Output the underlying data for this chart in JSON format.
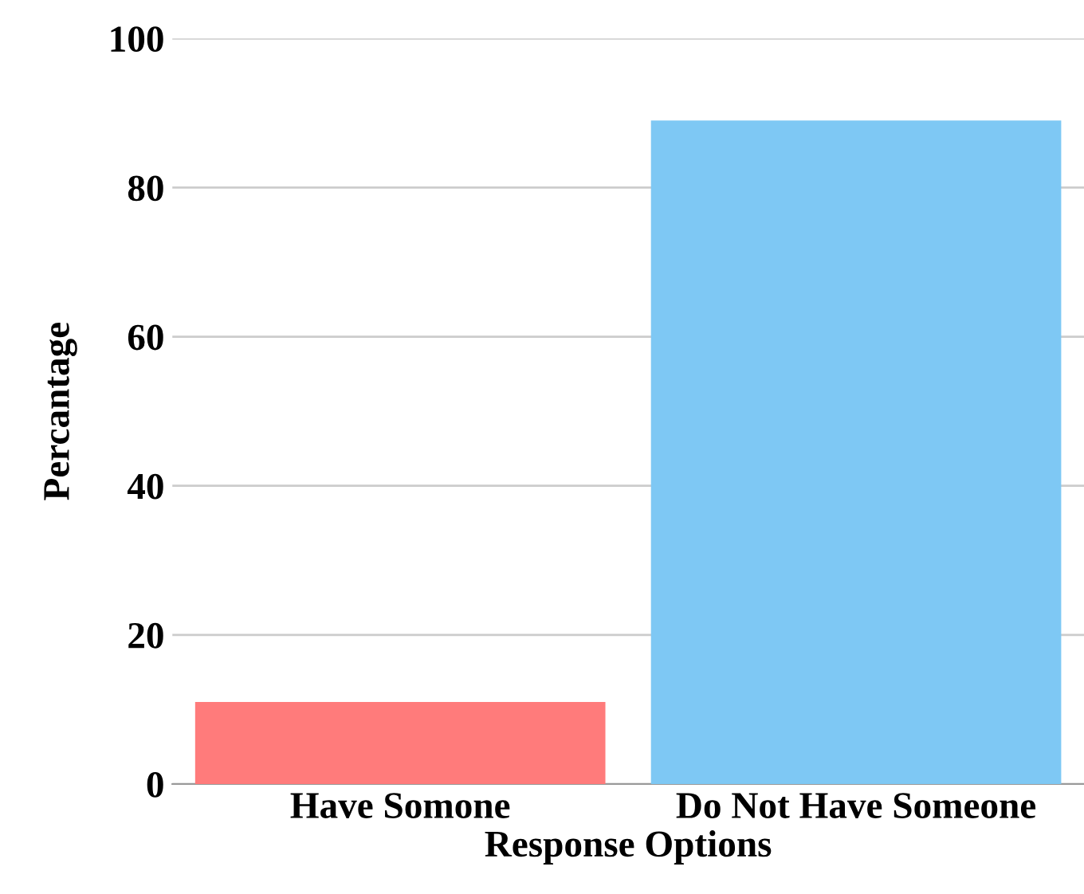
{
  "chart_data": {
    "type": "bar",
    "xlabel": "Response Options",
    "ylabel": "Percantage",
    "categories": [
      "Have Somone",
      "Do Not Have Someone"
    ],
    "values": [
      11,
      89
    ],
    "colors": [
      "#ff7b7b",
      "#7ec8f4"
    ],
    "ylim": [
      0,
      100
    ],
    "yticks": [
      0,
      20,
      40,
      60,
      80,
      100
    ],
    "grid": "y"
  }
}
